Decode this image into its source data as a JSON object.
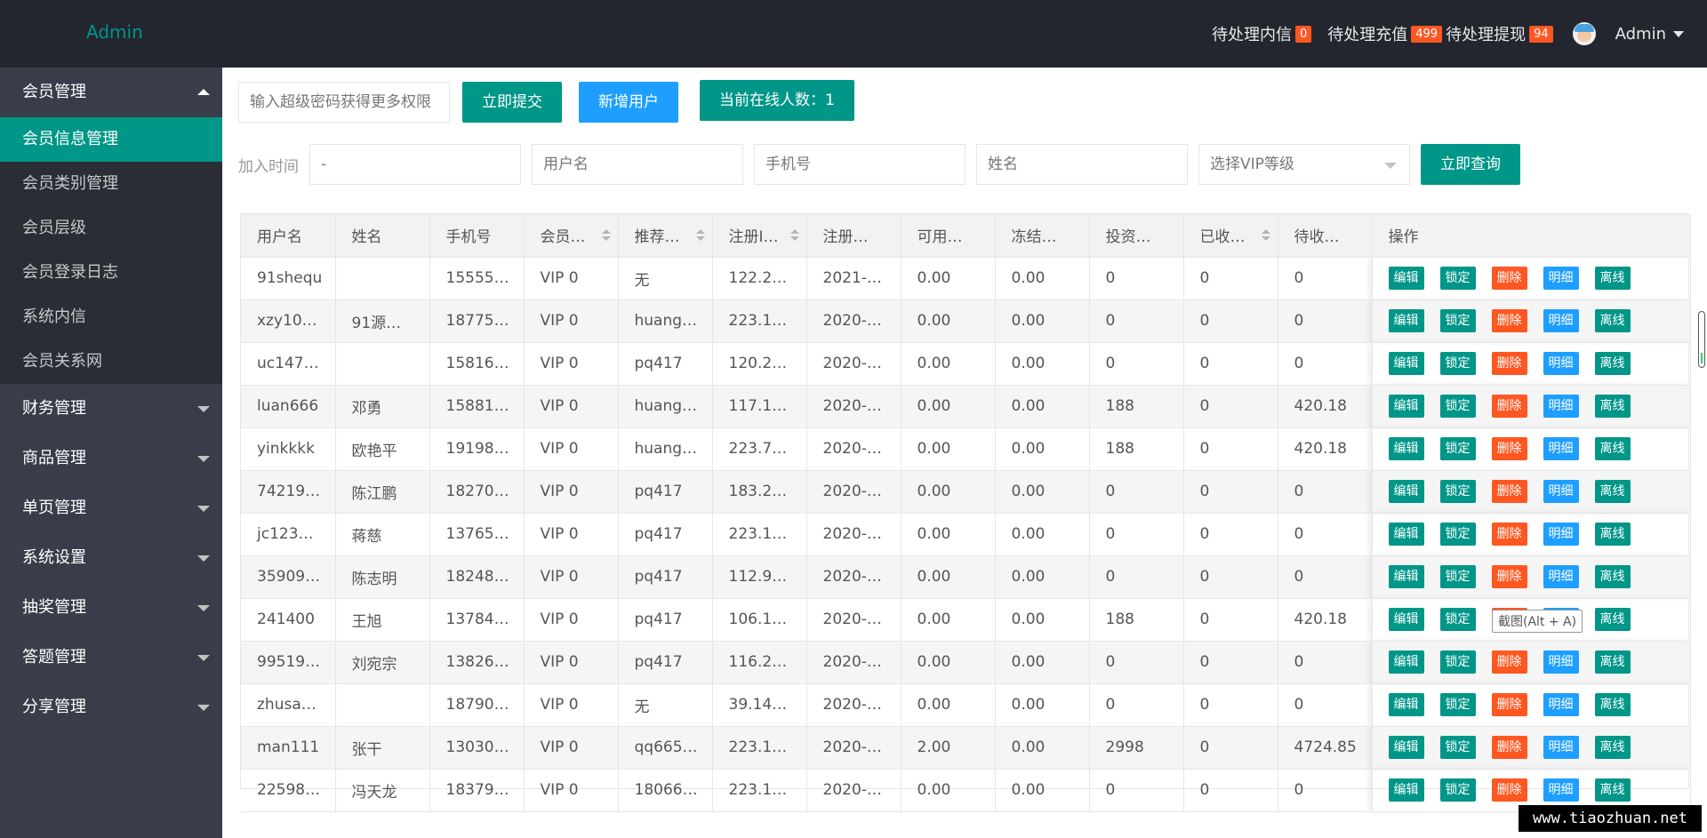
{
  "header": {
    "logo": "Admin",
    "pending_messages_label": "待处理内信",
    "pending_messages_count": "0",
    "pending_recharge_label": "待处理充值",
    "pending_recharge_count": "499",
    "pending_withdraw_label": "待处理提现",
    "pending_withdraw_count": "94",
    "user": "Admin"
  },
  "sidebar": {
    "group_member": "会员管理",
    "sub_items": [
      "会员信息管理",
      "会员类别管理",
      "会员层级",
      "会员登录日志",
      "系统内信",
      "会员关系网"
    ],
    "groups": [
      "财务管理",
      "商品管理",
      "单页管理",
      "系统设置",
      "抽奖管理",
      "答题管理",
      "分享管理"
    ]
  },
  "toolbar": {
    "super_password_placeholder": "输入超级密码获得更多权限",
    "submit_label": "立即提交",
    "add_user_label": "新增用户",
    "online_count_label": "当前在线人数：1"
  },
  "filter": {
    "join_time_label": "加入时间",
    "date_range_value": "-",
    "username_placeholder": "用户名",
    "phone_placeholder": "手机号",
    "name_placeholder": "姓名",
    "vip_select_placeholder": "选择VIP等级",
    "query_label": "立即查询"
  },
  "table": {
    "headers": [
      "用户名",
      "姓名",
      "手机号",
      "会员…",
      "推荐…",
      "注册I…",
      "注册…",
      "可用…",
      "冻结…",
      "投资…",
      "已收…",
      "待收…",
      "操作"
    ],
    "actions": [
      "编辑",
      "锁定",
      "删除",
      "明细",
      "离线"
    ],
    "rows": [
      [
        "91shequ",
        "",
        "15555…",
        "VIP 0",
        "无",
        "122.2…",
        "2021-…",
        "0.00",
        "0.00",
        "0",
        "0",
        "0"
      ],
      [
        "xzy10…",
        "91源…",
        "18775…",
        "VIP 0",
        "huang…",
        "223.1…",
        "2020-…",
        "0.00",
        "0.00",
        "0",
        "0",
        "0"
      ],
      [
        "uc147…",
        "",
        "15816…",
        "VIP 0",
        "pq417",
        "120.2…",
        "2020-…",
        "0.00",
        "0.00",
        "0",
        "0",
        "0"
      ],
      [
        "luan666",
        "邓勇",
        "15881…",
        "VIP 0",
        "huang…",
        "117.1…",
        "2020-…",
        "0.00",
        "0.00",
        "188",
        "0",
        "420.18"
      ],
      [
        "yinkkkk",
        "欧艳平",
        "19198…",
        "VIP 0",
        "huang…",
        "223.7…",
        "2020-…",
        "0.00",
        "0.00",
        "188",
        "0",
        "420.18"
      ],
      [
        "74219…",
        "陈江鹏",
        "18270…",
        "VIP 0",
        "pq417",
        "183.2…",
        "2020-…",
        "0.00",
        "0.00",
        "0",
        "0",
        "0"
      ],
      [
        "jc123…",
        "蒋慈",
        "13765…",
        "VIP 0",
        "pq417",
        "223.1…",
        "2020-…",
        "0.00",
        "0.00",
        "0",
        "0",
        "0"
      ],
      [
        "35909…",
        "陈志明",
        "18248…",
        "VIP 0",
        "pq417",
        "112.9…",
        "2020-…",
        "0.00",
        "0.00",
        "0",
        "0",
        "0"
      ],
      [
        "241400",
        "王旭",
        "13784…",
        "VIP 0",
        "pq417",
        "106.1…",
        "2020-…",
        "0.00",
        "0.00",
        "188",
        "0",
        "420.18"
      ],
      [
        "99519…",
        "刘宛宗",
        "13826…",
        "VIP 0",
        "pq417",
        "116.2…",
        "2020-…",
        "0.00",
        "0.00",
        "0",
        "0",
        "0"
      ],
      [
        "zhusa…",
        "",
        "18790…",
        "VIP 0",
        "无",
        "39.14…",
        "2020-…",
        "0.00",
        "0.00",
        "0",
        "0",
        "0"
      ],
      [
        "man111",
        "张干",
        "13030…",
        "VIP 0",
        "qq665…",
        "223.1…",
        "2020-…",
        "2.00",
        "0.00",
        "2998",
        "0",
        "4724.85"
      ],
      [
        "22598…",
        "冯天龙",
        "18379…",
        "VIP 0",
        "18066…",
        "223.1…",
        "2020-…",
        "0.00",
        "0.00",
        "0",
        "0",
        "0"
      ]
    ]
  },
  "tooltip": "截图(Alt + A)",
  "watermark": "www.tiaozhuan.net",
  "colors": {
    "header_bg": "#23262e",
    "sidebar_bg": "#393d49",
    "accent_green": "#009688",
    "accent_blue": "#1e9fff",
    "danger_orange": "#ff5722"
  }
}
